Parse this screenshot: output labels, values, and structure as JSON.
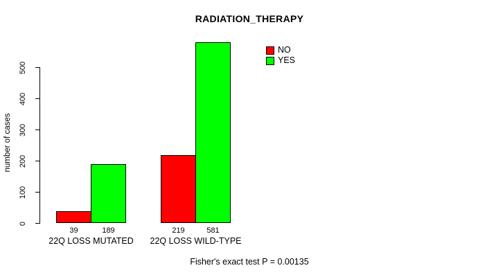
{
  "chart_data": {
    "type": "bar",
    "title": "RADIATION_THERAPY",
    "ylabel": "number of cases",
    "xlabel": "",
    "categories": [
      "22Q LOSS MUTATED",
      "22Q LOSS WILD-TYPE"
    ],
    "series": [
      {
        "name": "NO",
        "color": "#ff0000",
        "values": [
          39,
          219
        ]
      },
      {
        "name": "YES",
        "color": "#00ff00",
        "values": [
          189,
          581
        ]
      }
    ],
    "yticks": [
      0,
      100,
      200,
      300,
      400,
      500
    ],
    "ylim": [
      0,
      590
    ],
    "grid": false,
    "legend_position": "top-right",
    "bar_value_labels_shown": true,
    "footnote": "Fisher's exact test P = 0.00135",
    "colors": {
      "axis": "#000000",
      "text": "#000000",
      "background": "#ffffff"
    }
  }
}
